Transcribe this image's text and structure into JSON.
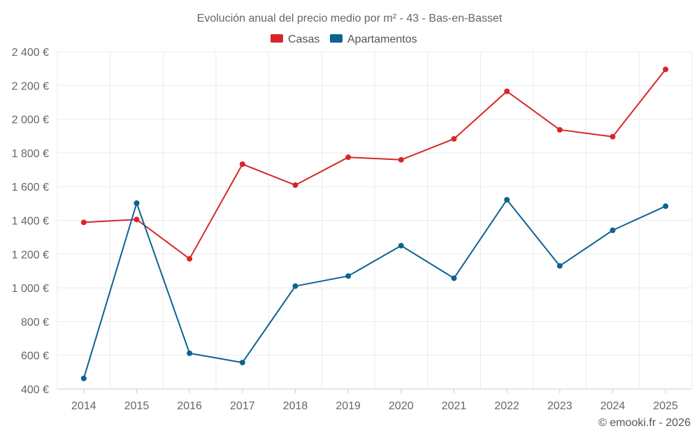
{
  "chart_data": {
    "type": "line",
    "title": "Evolución anual del precio medio por m² - 43 - Bas-en-Basset",
    "categories": [
      "2014",
      "2015",
      "2016",
      "2017",
      "2018",
      "2019",
      "2020",
      "2021",
      "2022",
      "2023",
      "2024",
      "2025"
    ],
    "series": [
      {
        "name": "Casas",
        "color": "#d62728",
        "values": [
          1388,
          1405,
          1172,
          1733,
          1609,
          1774,
          1759,
          1883,
          2165,
          1937,
          1896,
          2295
        ]
      },
      {
        "name": "Apartamentos",
        "color": "#0b6394",
        "values": [
          463,
          1502,
          612,
          557,
          1010,
          1070,
          1250,
          1057,
          1522,
          1130,
          1341,
          1484
        ]
      }
    ],
    "ylim": [
      400,
      2400
    ],
    "yticks": [
      400,
      600,
      800,
      1000,
      1200,
      1400,
      1600,
      1800,
      2000,
      2200,
      2400
    ],
    "ytick_labels": [
      "400 €",
      "600 €",
      "800 €",
      "1 000 €",
      "1 200 €",
      "1 400 €",
      "1 600 €",
      "1 800 €",
      "2 000 €",
      "2 200 €",
      "2 400 €"
    ],
    "xlabel": "",
    "ylabel": "",
    "grid": true,
    "legend_position": "top-center"
  },
  "credit": "© emooki.fr - 2026"
}
